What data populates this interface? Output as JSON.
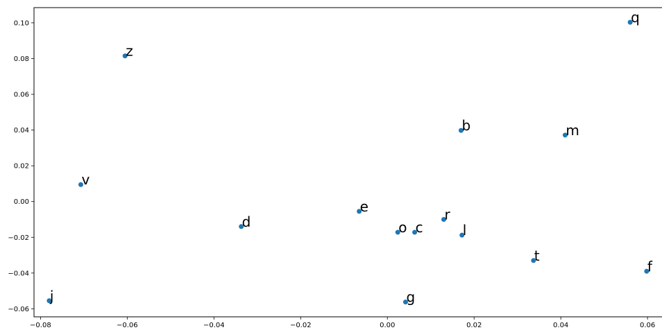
{
  "chart_data": {
    "type": "scatter",
    "title": "",
    "xlabel": "",
    "ylabel": "",
    "xlim": [
      -0.0815,
      0.0635
    ],
    "ylim": [
      -0.0645,
      0.1085
    ],
    "xticks": [
      -0.08,
      -0.06,
      -0.04,
      -0.02,
      0.0,
      0.02,
      0.04,
      0.06
    ],
    "xtick_labels": [
      "−0.08",
      "−0.06",
      "−0.04",
      "−0.02",
      "0.00",
      "0.02",
      "0.04",
      "0.06"
    ],
    "yticks": [
      -0.06,
      -0.04,
      -0.02,
      0.0,
      0.02,
      0.04,
      0.06,
      0.08,
      0.1
    ],
    "ytick_labels": [
      "−0.06",
      "−0.04",
      "−0.02",
      "0.00",
      "0.02",
      "0.04",
      "0.06",
      "0.08",
      "0.10"
    ],
    "grid": false,
    "marker_color": "#1f77b4",
    "points": [
      {
        "label": "q",
        "x": 0.056,
        "y": 0.1003
      },
      {
        "label": "z",
        "x": -0.0605,
        "y": 0.0815
      },
      {
        "label": "b",
        "x": 0.017,
        "y": 0.0398
      },
      {
        "label": "m",
        "x": 0.041,
        "y": 0.0372
      },
      {
        "label": "v",
        "x": -0.0707,
        "y": 0.0095
      },
      {
        "label": "e",
        "x": -0.0065,
        "y": -0.0055
      },
      {
        "label": "d",
        "x": -0.0337,
        "y": -0.014
      },
      {
        "label": "r",
        "x": 0.013,
        "y": -0.01
      },
      {
        "label": "o",
        "x": 0.0024,
        "y": -0.0172
      },
      {
        "label": "c",
        "x": 0.0063,
        "y": -0.0172
      },
      {
        "label": "l",
        "x": 0.0172,
        "y": -0.0188
      },
      {
        "label": "t",
        "x": 0.0337,
        "y": -0.033
      },
      {
        "label": "f",
        "x": 0.0598,
        "y": -0.039
      },
      {
        "label": "j",
        "x": -0.078,
        "y": -0.0555
      },
      {
        "label": "g",
        "x": 0.0042,
        "y": -0.0562
      }
    ]
  }
}
